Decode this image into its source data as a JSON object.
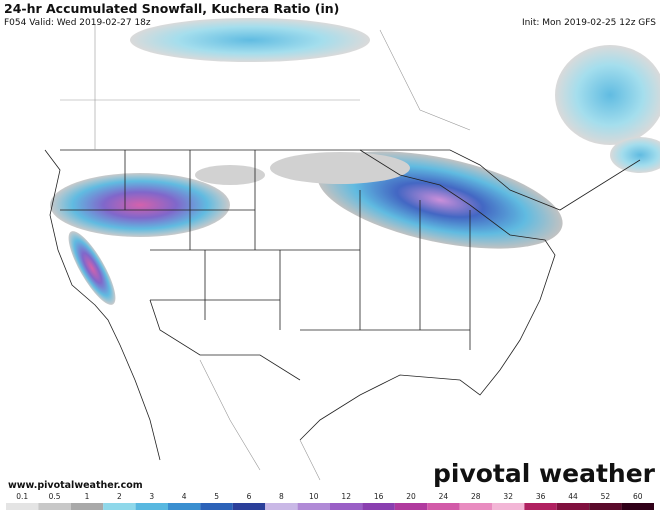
{
  "header": {
    "title": "24-hr Accumulated Snowfall, Kuchera Ratio (in)",
    "valid": "F054 Valid: Wed 2019-02-27 18z",
    "init": "Init: Mon 2019-02-25 12z GFS"
  },
  "footer": {
    "website": "www.pivotalweather.com",
    "logo": "pivotal weather"
  },
  "colorbar": {
    "labels": [
      "0.1",
      "0.5",
      "1",
      "2",
      "3",
      "4",
      "5",
      "6",
      "8",
      "10",
      "12",
      "16",
      "20",
      "24",
      "28",
      "32",
      "36",
      "44",
      "52",
      "60"
    ],
    "colors": [
      "#e4e4e4",
      "#c8c8c8",
      "#a9a9a9",
      "#8fd8ea",
      "#58b8e0",
      "#3a8fd0",
      "#2c62b8",
      "#2b3f9a",
      "#c9b8e6",
      "#b08ad6",
      "#9a5fc6",
      "#8a3fb0",
      "#b03a9e",
      "#d25aa8",
      "#e98cc0",
      "#f3b6d6",
      "#b02060",
      "#80103e",
      "#5a0a2a",
      "#300018"
    ]
  }
}
